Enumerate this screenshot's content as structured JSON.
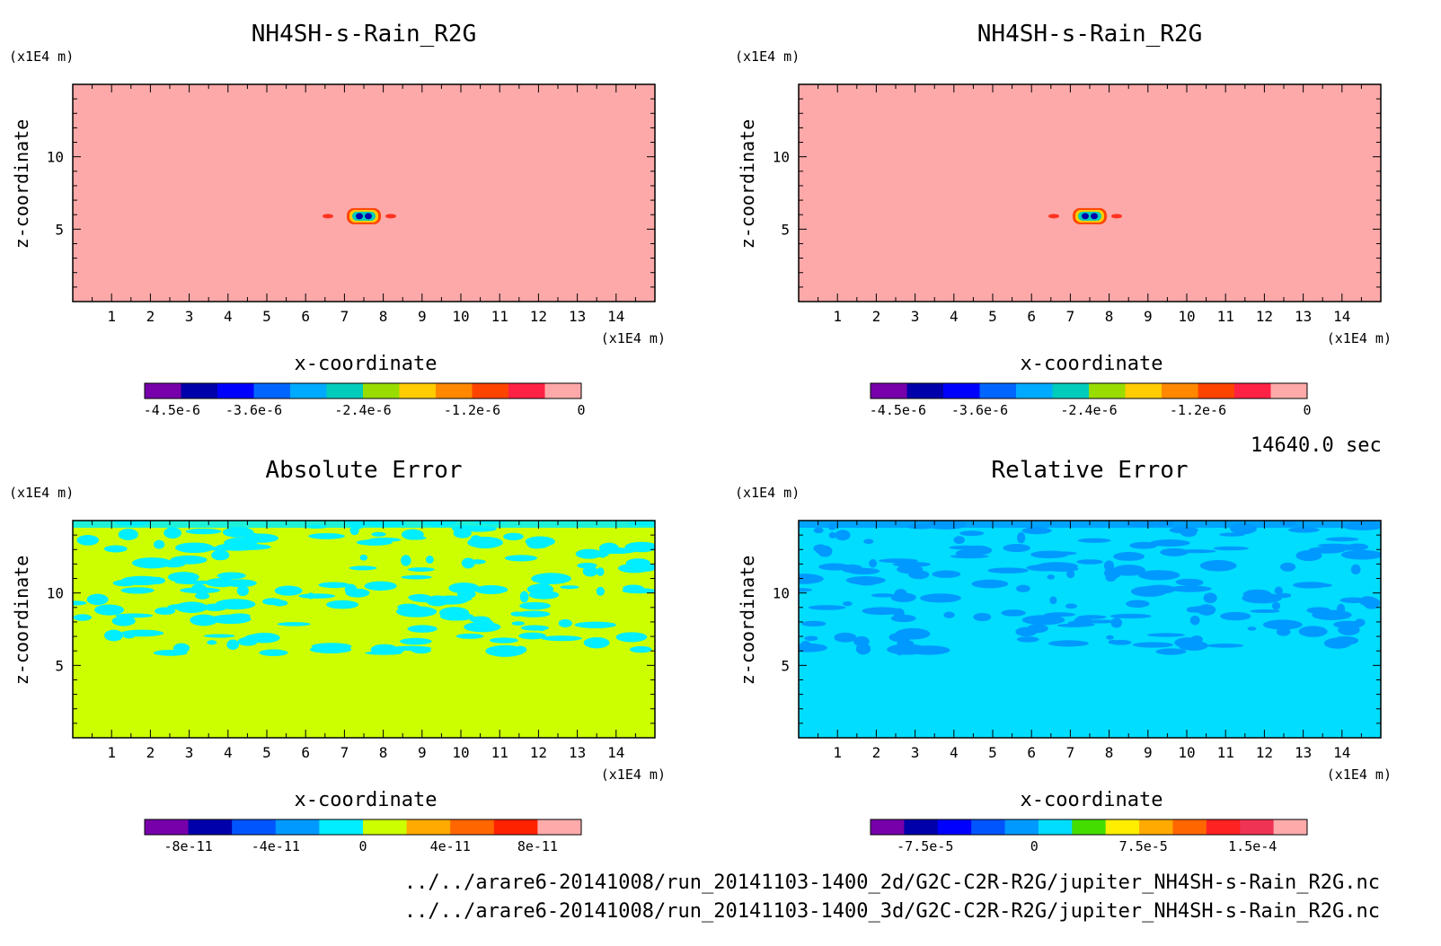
{
  "chart_data": [
    {
      "type": "heatmap",
      "title": "NH4SH-s-Rain_R2G",
      "xlabel": "x-coordinate",
      "ylabel": "z-coordinate",
      "x_unit": "(x1E4 m)",
      "y_unit": "(x1E4 m)",
      "xlim": [
        0,
        15
      ],
      "ylim": [
        0,
        15
      ],
      "x_ticks": [
        "1",
        "2",
        "3",
        "4",
        "5",
        "6",
        "7",
        "8",
        "9",
        "10",
        "11",
        "12",
        "13",
        "14"
      ],
      "y_ticks": [
        "5",
        "10"
      ],
      "background": "#fea9a9",
      "feature": {
        "x": 7.5,
        "z": 5.9,
        "note": ""
      },
      "colorbar": {
        "colors": [
          "#7700aa",
          "#0000aa",
          "#0000ff",
          "#0066ff",
          "#00aaff",
          "#00ccbb",
          "#99dd00",
          "#ffcc00",
          "#ff8800",
          "#ff4400",
          "#ff2244",
          "#fea9a9"
        ],
        "labels": [
          "-4.5e-6",
          "-3.6e-6",
          "-2.4e-6",
          "-1.2e-6",
          "0"
        ],
        "vmin": -4.8e-06,
        "vmax": 0
      }
    },
    {
      "type": "heatmap",
      "title": "NH4SH-s-Rain_R2G",
      "xlabel": "x-coordinate",
      "ylabel": "z-coordinate",
      "x_unit": "(x1E4 m)",
      "y_unit": "(x1E4 m)",
      "xlim": [
        0,
        15
      ],
      "ylim": [
        0,
        15
      ],
      "x_ticks": [
        "1",
        "2",
        "3",
        "4",
        "5",
        "6",
        "7",
        "8",
        "9",
        "10",
        "11",
        "12",
        "13",
        "14"
      ],
      "y_ticks": [
        "5",
        "10"
      ],
      "background": "#fea9a9",
      "feature": {
        "x": 7.5,
        "z": 5.9,
        "note": ""
      },
      "colorbar": {
        "colors": [
          "#7700aa",
          "#0000aa",
          "#0000ff",
          "#0066ff",
          "#00aaff",
          "#00ccbb",
          "#99dd00",
          "#ffcc00",
          "#ff8800",
          "#ff4400",
          "#ff2244",
          "#fea9a9"
        ],
        "labels": [
          "-4.5e-6",
          "-3.6e-6",
          "-2.4e-6",
          "-1.2e-6",
          "0"
        ],
        "vmin": -4.8e-06,
        "vmax": 0
      }
    },
    {
      "type": "heatmap",
      "title": "Absolute Error",
      "xlabel": "x-coordinate",
      "ylabel": "z-coordinate",
      "x_unit": "(x1E4 m)",
      "y_unit": "(x1E4 m)",
      "xlim": [
        0,
        15
      ],
      "ylim": [
        0,
        15
      ],
      "x_ticks": [
        "1",
        "2",
        "3",
        "4",
        "5",
        "6",
        "7",
        "8",
        "9",
        "10",
        "11",
        "12",
        "13",
        "14"
      ],
      "y_ticks": [
        "5",
        "10"
      ],
      "background": "#ccff00",
      "patch_color": "#00eeff",
      "colorbar": {
        "colors": [
          "#7700aa",
          "#0000aa",
          "#0055ff",
          "#0099ff",
          "#00eeff",
          "#ccff00",
          "#ffaa00",
          "#ff6600",
          "#ff2200",
          "#ffaaaa"
        ],
        "labels": [
          "-8e-11",
          "-4e-11",
          "0",
          "4e-11",
          "8e-11"
        ],
        "vmin": -1e-10,
        "vmax": 1e-10
      }
    },
    {
      "type": "heatmap",
      "title": "Relative Error",
      "xlabel": "x-coordinate",
      "ylabel": "z-coordinate",
      "x_unit": "(x1E4 m)",
      "y_unit": "(x1E4 m)",
      "xlim": [
        0,
        15
      ],
      "ylim": [
        0,
        15
      ],
      "x_ticks": [
        "1",
        "2",
        "3",
        "4",
        "5",
        "6",
        "7",
        "8",
        "9",
        "10",
        "11",
        "12",
        "13",
        "14"
      ],
      "y_ticks": [
        "5",
        "10"
      ],
      "background": "#00ddff",
      "patch_color": "#0099ff",
      "colorbar": {
        "colors": [
          "#7700aa",
          "#0000aa",
          "#0000ff",
          "#0055ff",
          "#0099ff",
          "#00ddff",
          "#44dd00",
          "#ffee00",
          "#ffaa00",
          "#ff6600",
          "#ff2222",
          "#ee3355",
          "#ffaaaa"
        ],
        "labels": [
          "-7.5e-5",
          "0",
          "7.5e-5",
          "1.5e-4"
        ],
        "vmin": -0.0001125,
        "vmax": 0.0001875
      }
    }
  ],
  "time_label": "14640.0 sec",
  "footer": {
    "file_2d": "../../arare6-20141008/run_20141103-1400_2d/G2C-C2R-R2G/jupiter_NH4SH-s-Rain_R2G.nc",
    "file_3d": "../../arare6-20141008/run_20141103-1400_3d/G2C-C2R-R2G/jupiter_NH4SH-s-Rain_R2G.nc"
  }
}
